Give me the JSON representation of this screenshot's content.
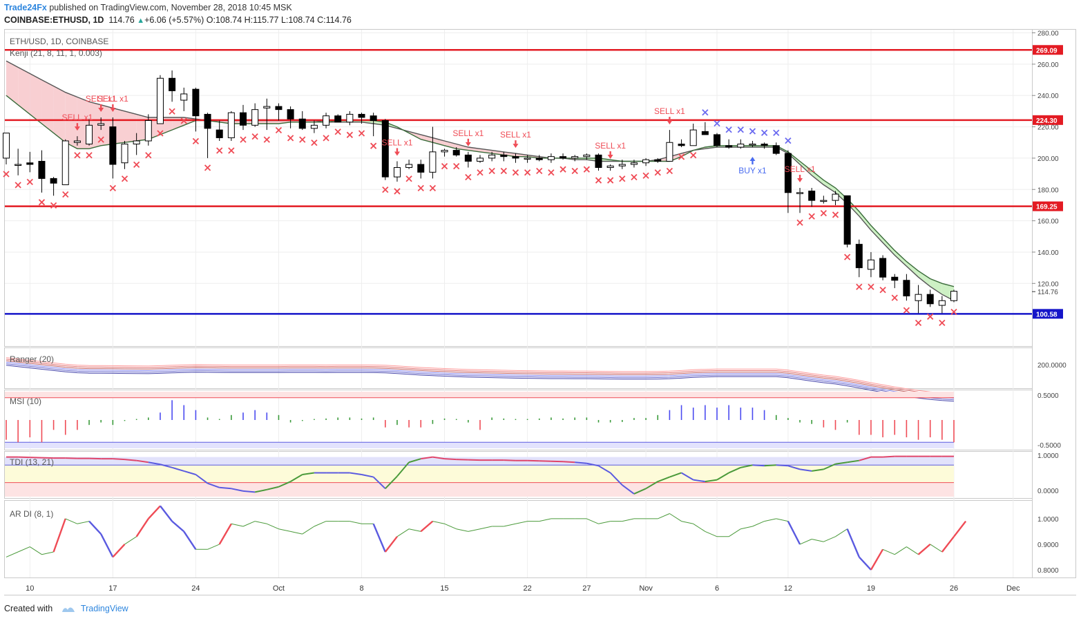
{
  "header": {
    "brand": "Trade24Fx",
    "published": "published on TradingView.com, November 28, 2018 10:45 MSK",
    "symbol": "COINBASE:ETHUSD, 1D",
    "last": "114.76",
    "change": "+6.06 (+5.57%)",
    "ohlc": "O:108.74 H:115.77 L:108.74 C:114.76"
  },
  "footer": {
    "created_with": "Created with",
    "tradingview": "TradingView"
  },
  "colors": {
    "red": "#e31b23",
    "blue": "#1515c9",
    "up": "#ffffff",
    "down": "#000000",
    "cloud_bear": "#f8cfd2",
    "cloud_bull": "#cdf0c4",
    "x_red": "#ef4b55",
    "x_blue": "#6a6af0"
  },
  "chart_data": [
    {
      "type": "candlestick",
      "title": "ETH/USD, 1D, COINBASE",
      "indicator": "Kenji (21, 8, 11, 1, 0.003)",
      "ylim": [
        80,
        282
      ],
      "y_ticks": [
        "280.00",
        "260.00",
        "240.00",
        "220.00",
        "200.00",
        "180.00",
        "160.00",
        "140.00",
        "120.00"
      ],
      "levels": [
        {
          "value": 269.09,
          "label": "269.09",
          "color": "#e31b23"
        },
        {
          "value": 224.3,
          "label": "224.30",
          "color": "#e31b23"
        },
        {
          "value": 169.25,
          "label": "169.25",
          "color": "#e31b23"
        },
        {
          "value": 100.58,
          "label": "100.58",
          "color": "#1515c9"
        }
      ],
      "last_price": "114.76",
      "x_labels": [
        {
          "label": "10",
          "i": 2
        },
        {
          "label": "17",
          "i": 9
        },
        {
          "label": "24",
          "i": 16
        },
        {
          "label": "Oct",
          "i": 23
        },
        {
          "label": "8",
          "i": 30
        },
        {
          "label": "15",
          "i": 37
        },
        {
          "label": "22",
          "i": 44
        },
        {
          "label": "27",
          "i": 49
        },
        {
          "label": "Nov",
          "i": 54
        },
        {
          "label": "6",
          "i": 60
        },
        {
          "label": "12",
          "i": 66
        },
        {
          "label": "19",
          "i": 73
        },
        {
          "label": "26",
          "i": 80
        },
        {
          "label": "Dec",
          "i": 85
        }
      ],
      "candles": [
        [
          200,
          216,
          196,
          216
        ],
        [
          196,
          206,
          189,
          196
        ],
        [
          197,
          204,
          191,
          196
        ],
        [
          198,
          205,
          178,
          187
        ],
        [
          187,
          188,
          176,
          184
        ],
        [
          183,
          212,
          183,
          211
        ],
        [
          210,
          214,
          208,
          211
        ],
        [
          209,
          225,
          208,
          221
        ],
        [
          221,
          226,
          218,
          222
        ],
        [
          220,
          226,
          187,
          196
        ],
        [
          197,
          211,
          193,
          209
        ],
        [
          209,
          216,
          202,
          211
        ],
        [
          211,
          228,
          208,
          224
        ],
        [
          222,
          253,
          222,
          251
        ],
        [
          251,
          256,
          236,
          243
        ],
        [
          237,
          245,
          230,
          241
        ],
        [
          244,
          245,
          217,
          227
        ],
        [
          228,
          229,
          200,
          219
        ],
        [
          218,
          224,
          211,
          213
        ],
        [
          213,
          230,
          211,
          229
        ],
        [
          229,
          234,
          218,
          221
        ],
        [
          221,
          235,
          220,
          231
        ],
        [
          232,
          238,
          218,
          233
        ],
        [
          233,
          235,
          224,
          231
        ],
        [
          231,
          233,
          219,
          225
        ],
        [
          225,
          230,
          218,
          219
        ],
        [
          219,
          224,
          216,
          221
        ],
        [
          221,
          229,
          219,
          227
        ],
        [
          227,
          228,
          223,
          223
        ],
        [
          223,
          230,
          221,
          228
        ],
        [
          228,
          229,
          222,
          226
        ],
        [
          227,
          229,
          214,
          224
        ],
        [
          224,
          225,
          186,
          188
        ],
        [
          188,
          198,
          185,
          194
        ],
        [
          194,
          199,
          193,
          196
        ],
        [
          196,
          199,
          187,
          191
        ],
        [
          191,
          220,
          187,
          204
        ],
        [
          204,
          206,
          201,
          205
        ],
        [
          205,
          207,
          201,
          202
        ],
        [
          202,
          204,
          194,
          198
        ],
        [
          198,
          202,
          197,
          200
        ],
        [
          200,
          204,
          198,
          202
        ],
        [
          202,
          204,
          198,
          201
        ],
        [
          201,
          203,
          197,
          200
        ],
        [
          200,
          202,
          197,
          200
        ],
        [
          200,
          202,
          198,
          199
        ],
        [
          199,
          203,
          197,
          201
        ],
        [
          201,
          203,
          199,
          200
        ],
        [
          200,
          202,
          198,
          201
        ],
        [
          201,
          203,
          199,
          202
        ],
        [
          202,
          203,
          192,
          194
        ],
        [
          194,
          196,
          192,
          195
        ],
        [
          195,
          199,
          193,
          196
        ],
        [
          196,
          199,
          194,
          197
        ],
        [
          197,
          200,
          195,
          199
        ],
        [
          199,
          200,
          197,
          198
        ],
        [
          198,
          218,
          198,
          210
        ],
        [
          209,
          212,
          207,
          208
        ],
        [
          208,
          222,
          208,
          218
        ],
        [
          217,
          223,
          215,
          215
        ],
        [
          215,
          216,
          207,
          208
        ],
        [
          208,
          212,
          206,
          207
        ],
        [
          207,
          212,
          206,
          209
        ],
        [
          209,
          211,
          207,
          209
        ],
        [
          209,
          210,
          206,
          208
        ],
        [
          208,
          210,
          202,
          203
        ],
        [
          203,
          205,
          165,
          178
        ],
        [
          178,
          181,
          165,
          178
        ],
        [
          179,
          181,
          169,
          173
        ],
        [
          173,
          176,
          171,
          173
        ],
        [
          173,
          179,
          170,
          177
        ],
        [
          176,
          176,
          143,
          145
        ],
        [
          145,
          148,
          124,
          130
        ],
        [
          129,
          140,
          124,
          135
        ],
        [
          136,
          138,
          122,
          124
        ],
        [
          124,
          126,
          117,
          122
        ],
        [
          122,
          126,
          109,
          112
        ],
        [
          109,
          119,
          101,
          113
        ],
        [
          113,
          116,
          105,
          107
        ],
        [
          106,
          112,
          101,
          109
        ],
        [
          109,
          116,
          108,
          115
        ]
      ],
      "kenji_upper": [
        262,
        258,
        254,
        250,
        246,
        242,
        239,
        236,
        234,
        232,
        230,
        228,
        226,
        226,
        226,
        226,
        225,
        224,
        224,
        224,
        224,
        224,
        224,
        224,
        224,
        224,
        224,
        223,
        223,
        223,
        223,
        222,
        221,
        219,
        217,
        215,
        213,
        211,
        209,
        207,
        206,
        205,
        204,
        203,
        202,
        201,
        200,
        200,
        199,
        199,
        198,
        198,
        198,
        198,
        198,
        199,
        201,
        203,
        205,
        206,
        207,
        207,
        207,
        207,
        207,
        207,
        203,
        196,
        189,
        183,
        178,
        171,
        163,
        154,
        146,
        138,
        131,
        124,
        118,
        113,
        109
      ],
      "kenji_lower": [
        240,
        234,
        228,
        222,
        216,
        210,
        206,
        206,
        208,
        209,
        210,
        211,
        212,
        215,
        218,
        221,
        224,
        224,
        223,
        222,
        222,
        222,
        222,
        222,
        223,
        223,
        223,
        223,
        224,
        224,
        224,
        224,
        223,
        220,
        216,
        212,
        210,
        208,
        206,
        205,
        204,
        203,
        202,
        201,
        201,
        200,
        200,
        200,
        200,
        200,
        200,
        199,
        198,
        198,
        198,
        198,
        198,
        201,
        205,
        207,
        208,
        208,
        208,
        208,
        208,
        208,
        204,
        198,
        192,
        186,
        181,
        174,
        166,
        157,
        149,
        141,
        134,
        128,
        123,
        120,
        118
      ],
      "signals": [
        {
          "label": "SELL x1",
          "i": 6
        },
        {
          "label": "SELL x1",
          "i": 8
        },
        {
          "label": "SELL x1",
          "i": 9
        },
        {
          "label": "SELL x1",
          "i": 33
        },
        {
          "label": "SELL x1",
          "i": 39
        },
        {
          "label": "SELL x1",
          "i": 43
        },
        {
          "label": "SELL x1",
          "i": 51
        },
        {
          "label": "SELL x1",
          "i": 56
        },
        {
          "label": "SELL x1",
          "i": 67
        },
        {
          "label": "BUY x1",
          "i": 63
        }
      ]
    },
    {
      "type": "line",
      "title": "Ranger (20)",
      "y_tick": "200.0000"
    },
    {
      "type": "histogram",
      "title": "MSI (10)",
      "y_ticks": [
        "0.5000",
        "-0.5000"
      ],
      "ylim": [
        -0.6,
        0.6
      ],
      "values": [
        -0.4,
        -0.45,
        -0.35,
        -0.45,
        -0.2,
        -0.3,
        -0.2,
        -0.1,
        -0.05,
        -0.1,
        -0.02,
        0.02,
        0.05,
        0.15,
        0.4,
        0.3,
        0.2,
        0.05,
        0.02,
        0.1,
        0.15,
        0.2,
        0.15,
        0.1,
        -0.05,
        -0.02,
        0.02,
        0.03,
        0.05,
        0.05,
        0.03,
        0.05,
        -0.15,
        -0.1,
        -0.15,
        -0.15,
        -0.08,
        0.03,
        0.02,
        -0.05,
        -0.2,
        0.05,
        0.03,
        0.02,
        0.02,
        0.03,
        0.05,
        0.03,
        0.05,
        0.05,
        -0.05,
        -0.05,
        -0.04,
        0.04,
        0.04,
        0.1,
        0.2,
        0.3,
        0.25,
        0.3,
        0.25,
        0.3,
        0.25,
        0.25,
        0.2,
        0.1,
        0.04,
        -0.05,
        -0.08,
        -0.15,
        -0.2,
        -0.05,
        -0.3,
        -0.3,
        -0.35,
        -0.3,
        -0.35,
        -0.4,
        -0.35,
        -0.4,
        -0.45
      ]
    },
    {
      "type": "line",
      "title": "TDI (13, 21)",
      "y_ticks": [
        "1.0000",
        "0.0000"
      ],
      "ylim": [
        -0.2,
        1.1
      ],
      "values": [
        0.95,
        0.95,
        0.94,
        0.93,
        0.92,
        0.92,
        0.91,
        0.91,
        0.9,
        0.9,
        0.88,
        0.85,
        0.8,
        0.74,
        0.65,
        0.55,
        0.45,
        0.2,
        0.08,
        0.05,
        -0.02,
        -0.05,
        0.02,
        0.1,
        0.25,
        0.45,
        0.5,
        0.5,
        0.5,
        0.5,
        0.45,
        0.38,
        0.05,
        0.4,
        0.8,
        0.9,
        0.95,
        0.9,
        0.88,
        0.87,
        0.86,
        0.86,
        0.86,
        0.85,
        0.85,
        0.84,
        0.83,
        0.82,
        0.8,
        0.77,
        0.7,
        0.5,
        0.15,
        -0.1,
        0.05,
        0.25,
        0.38,
        0.5,
        0.3,
        0.25,
        0.3,
        0.5,
        0.65,
        0.72,
        0.7,
        0.72,
        0.7,
        0.6,
        0.55,
        0.6,
        0.75,
        0.8,
        0.85,
        0.95,
        0.95,
        0.97,
        0.97,
        0.97,
        0.97,
        0.97,
        0.97
      ]
    },
    {
      "type": "line",
      "title": "AR DI (8, 1)",
      "y_ticks": [
        "1.0000",
        "0.9000",
        "0.8000"
      ],
      "ylim": [
        0.77,
        1.07
      ],
      "values": [
        0.85,
        0.87,
        0.89,
        0.86,
        0.87,
        1.0,
        0.98,
        0.99,
        0.94,
        0.85,
        0.9,
        0.93,
        1.0,
        1.05,
        0.99,
        0.95,
        0.88,
        0.88,
        0.9,
        0.98,
        0.97,
        0.99,
        0.98,
        0.96,
        0.95,
        0.94,
        0.97,
        0.99,
        0.99,
        0.99,
        0.98,
        0.98,
        0.87,
        0.93,
        0.96,
        0.95,
        0.99,
        0.98,
        0.96,
        0.95,
        0.96,
        0.97,
        0.97,
        0.98,
        0.99,
        0.99,
        1.0,
        1.0,
        1.0,
        1.0,
        0.98,
        0.99,
        0.99,
        1.0,
        1.0,
        1.0,
        1.02,
        0.99,
        0.98,
        0.95,
        0.93,
        0.93,
        0.96,
        0.97,
        0.99,
        1.0,
        0.99,
        0.9,
        0.92,
        0.91,
        0.93,
        0.96,
        0.85,
        0.8,
        0.88,
        0.86,
        0.89,
        0.86,
        0.9,
        0.87,
        0.93,
        0.99
      ]
    }
  ]
}
